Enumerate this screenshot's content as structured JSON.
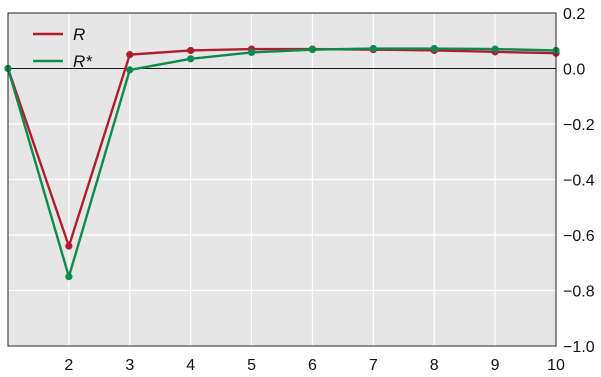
{
  "chart_data": {
    "type": "line",
    "x": [
      1,
      2,
      3,
      4,
      5,
      6,
      7,
      8,
      9,
      10
    ],
    "xlim": [
      1,
      10
    ],
    "ylim": [
      -1.0,
      0.2
    ],
    "x_ticks": [
      2,
      3,
      4,
      5,
      6,
      7,
      8,
      9,
      10
    ],
    "x_tick_labels": [
      "2",
      "3",
      "4",
      "5",
      "6",
      "7",
      "8",
      "9",
      "10"
    ],
    "y_ticks": [
      0.2,
      0.0,
      -0.2,
      -0.4,
      -0.6,
      -0.8,
      -1.0
    ],
    "y_tick_labels": [
      "0.2",
      "0.0",
      "−0.2",
      "−0.4",
      "−0.6",
      "−0.8",
      "−1.0"
    ],
    "grid": true,
    "zero_line": true,
    "legend_position": "top-left",
    "background_color": "#e6e6e6",
    "series": [
      {
        "name": "R",
        "color": "#b01e2e",
        "values": [
          0.0,
          -0.64,
          0.05,
          0.065,
          0.07,
          0.07,
          0.068,
          0.065,
          0.06,
          0.055
        ]
      },
      {
        "name": "R*",
        "color": "#0e8a4f",
        "values": [
          0.0,
          -0.75,
          -0.005,
          0.035,
          0.058,
          0.068,
          0.072,
          0.072,
          0.07,
          0.065
        ]
      }
    ]
  }
}
